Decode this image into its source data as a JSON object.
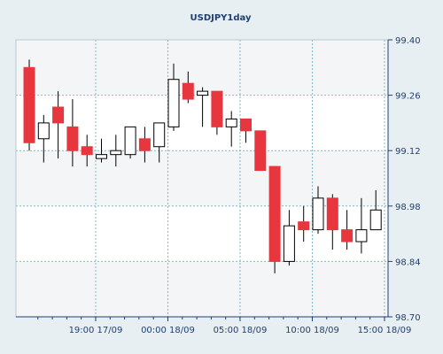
{
  "chart_data": {
    "type": "candlestick",
    "title": "USDJPY1day",
    "colors": {
      "down_fill": "#e8363e",
      "up_fill": "#ffffff",
      "candle_stroke": "#000000",
      "wick": "#000000",
      "grid": "#7fb8c4",
      "axis": "#1f3f73",
      "plot_bg": "#ffffff",
      "plot_band": "#f3f5f6",
      "page_bg": "#e8eff2"
    },
    "ylim": [
      98.7,
      99.4
    ],
    "yticks": [
      {
        "value": 99.4,
        "label": "99.40"
      },
      {
        "value": 99.26,
        "label": "99.26"
      },
      {
        "value": 99.12,
        "label": "99.12"
      },
      {
        "value": 98.98,
        "label": "98.98"
      },
      {
        "value": 98.84,
        "label": "98.84"
      },
      {
        "value": 98.7,
        "label": "98.70"
      }
    ],
    "xticks": [
      {
        "index": 4.6,
        "label": "19:00 17/09"
      },
      {
        "index": 9.6,
        "label": "00:00 18/09"
      },
      {
        "index": 14.6,
        "label": "05:00 18/09"
      },
      {
        "index": 19.6,
        "label": "10:00 18/09"
      },
      {
        "index": 24.6,
        "label": "15:00 18/09"
      }
    ],
    "grid": true,
    "candles": [
      {
        "open": 99.33,
        "high": 99.35,
        "low": 99.12,
        "close": 99.14
      },
      {
        "open": 99.15,
        "high": 99.21,
        "low": 99.09,
        "close": 99.19
      },
      {
        "open": 99.23,
        "high": 99.27,
        "low": 99.1,
        "close": 99.19
      },
      {
        "open": 99.18,
        "high": 99.25,
        "low": 99.08,
        "close": 99.12
      },
      {
        "open": 99.13,
        "high": 99.16,
        "low": 99.08,
        "close": 99.11
      },
      {
        "open": 99.1,
        "high": 99.15,
        "low": 99.09,
        "close": 99.11
      },
      {
        "open": 99.11,
        "high": 99.16,
        "low": 99.08,
        "close": 99.12
      },
      {
        "open": 99.11,
        "high": 99.18,
        "low": 99.1,
        "close": 99.18
      },
      {
        "open": 99.15,
        "high": 99.18,
        "low": 99.09,
        "close": 99.12
      },
      {
        "open": 99.13,
        "high": 99.19,
        "low": 99.09,
        "close": 99.19
      },
      {
        "open": 99.18,
        "high": 99.34,
        "low": 99.17,
        "close": 99.3
      },
      {
        "open": 99.29,
        "high": 99.32,
        "low": 99.24,
        "close": 99.25
      },
      {
        "open": 99.26,
        "high": 99.28,
        "low": 99.18,
        "close": 99.27
      },
      {
        "open": 99.27,
        "high": 99.27,
        "low": 99.16,
        "close": 99.18
      },
      {
        "open": 99.18,
        "high": 99.22,
        "low": 99.13,
        "close": 99.2
      },
      {
        "open": 99.2,
        "high": 99.2,
        "low": 99.14,
        "close": 99.17
      },
      {
        "open": 99.17,
        "high": 99.17,
        "low": 99.07,
        "close": 99.07
      },
      {
        "open": 99.08,
        "high": 99.08,
        "low": 98.81,
        "close": 98.84
      },
      {
        "open": 98.84,
        "high": 98.97,
        "low": 98.83,
        "close": 98.93
      },
      {
        "open": 98.94,
        "high": 98.98,
        "low": 98.89,
        "close": 98.92
      },
      {
        "open": 98.92,
        "high": 99.03,
        "low": 98.91,
        "close": 99.0
      },
      {
        "open": 99.0,
        "high": 99.01,
        "low": 98.87,
        "close": 98.92
      },
      {
        "open": 98.92,
        "high": 98.97,
        "low": 98.87,
        "close": 98.89
      },
      {
        "open": 98.89,
        "high": 99.0,
        "low": 98.86,
        "close": 98.92
      },
      {
        "open": 98.92,
        "high": 99.02,
        "low": 98.92,
        "close": 98.97
      }
    ]
  }
}
